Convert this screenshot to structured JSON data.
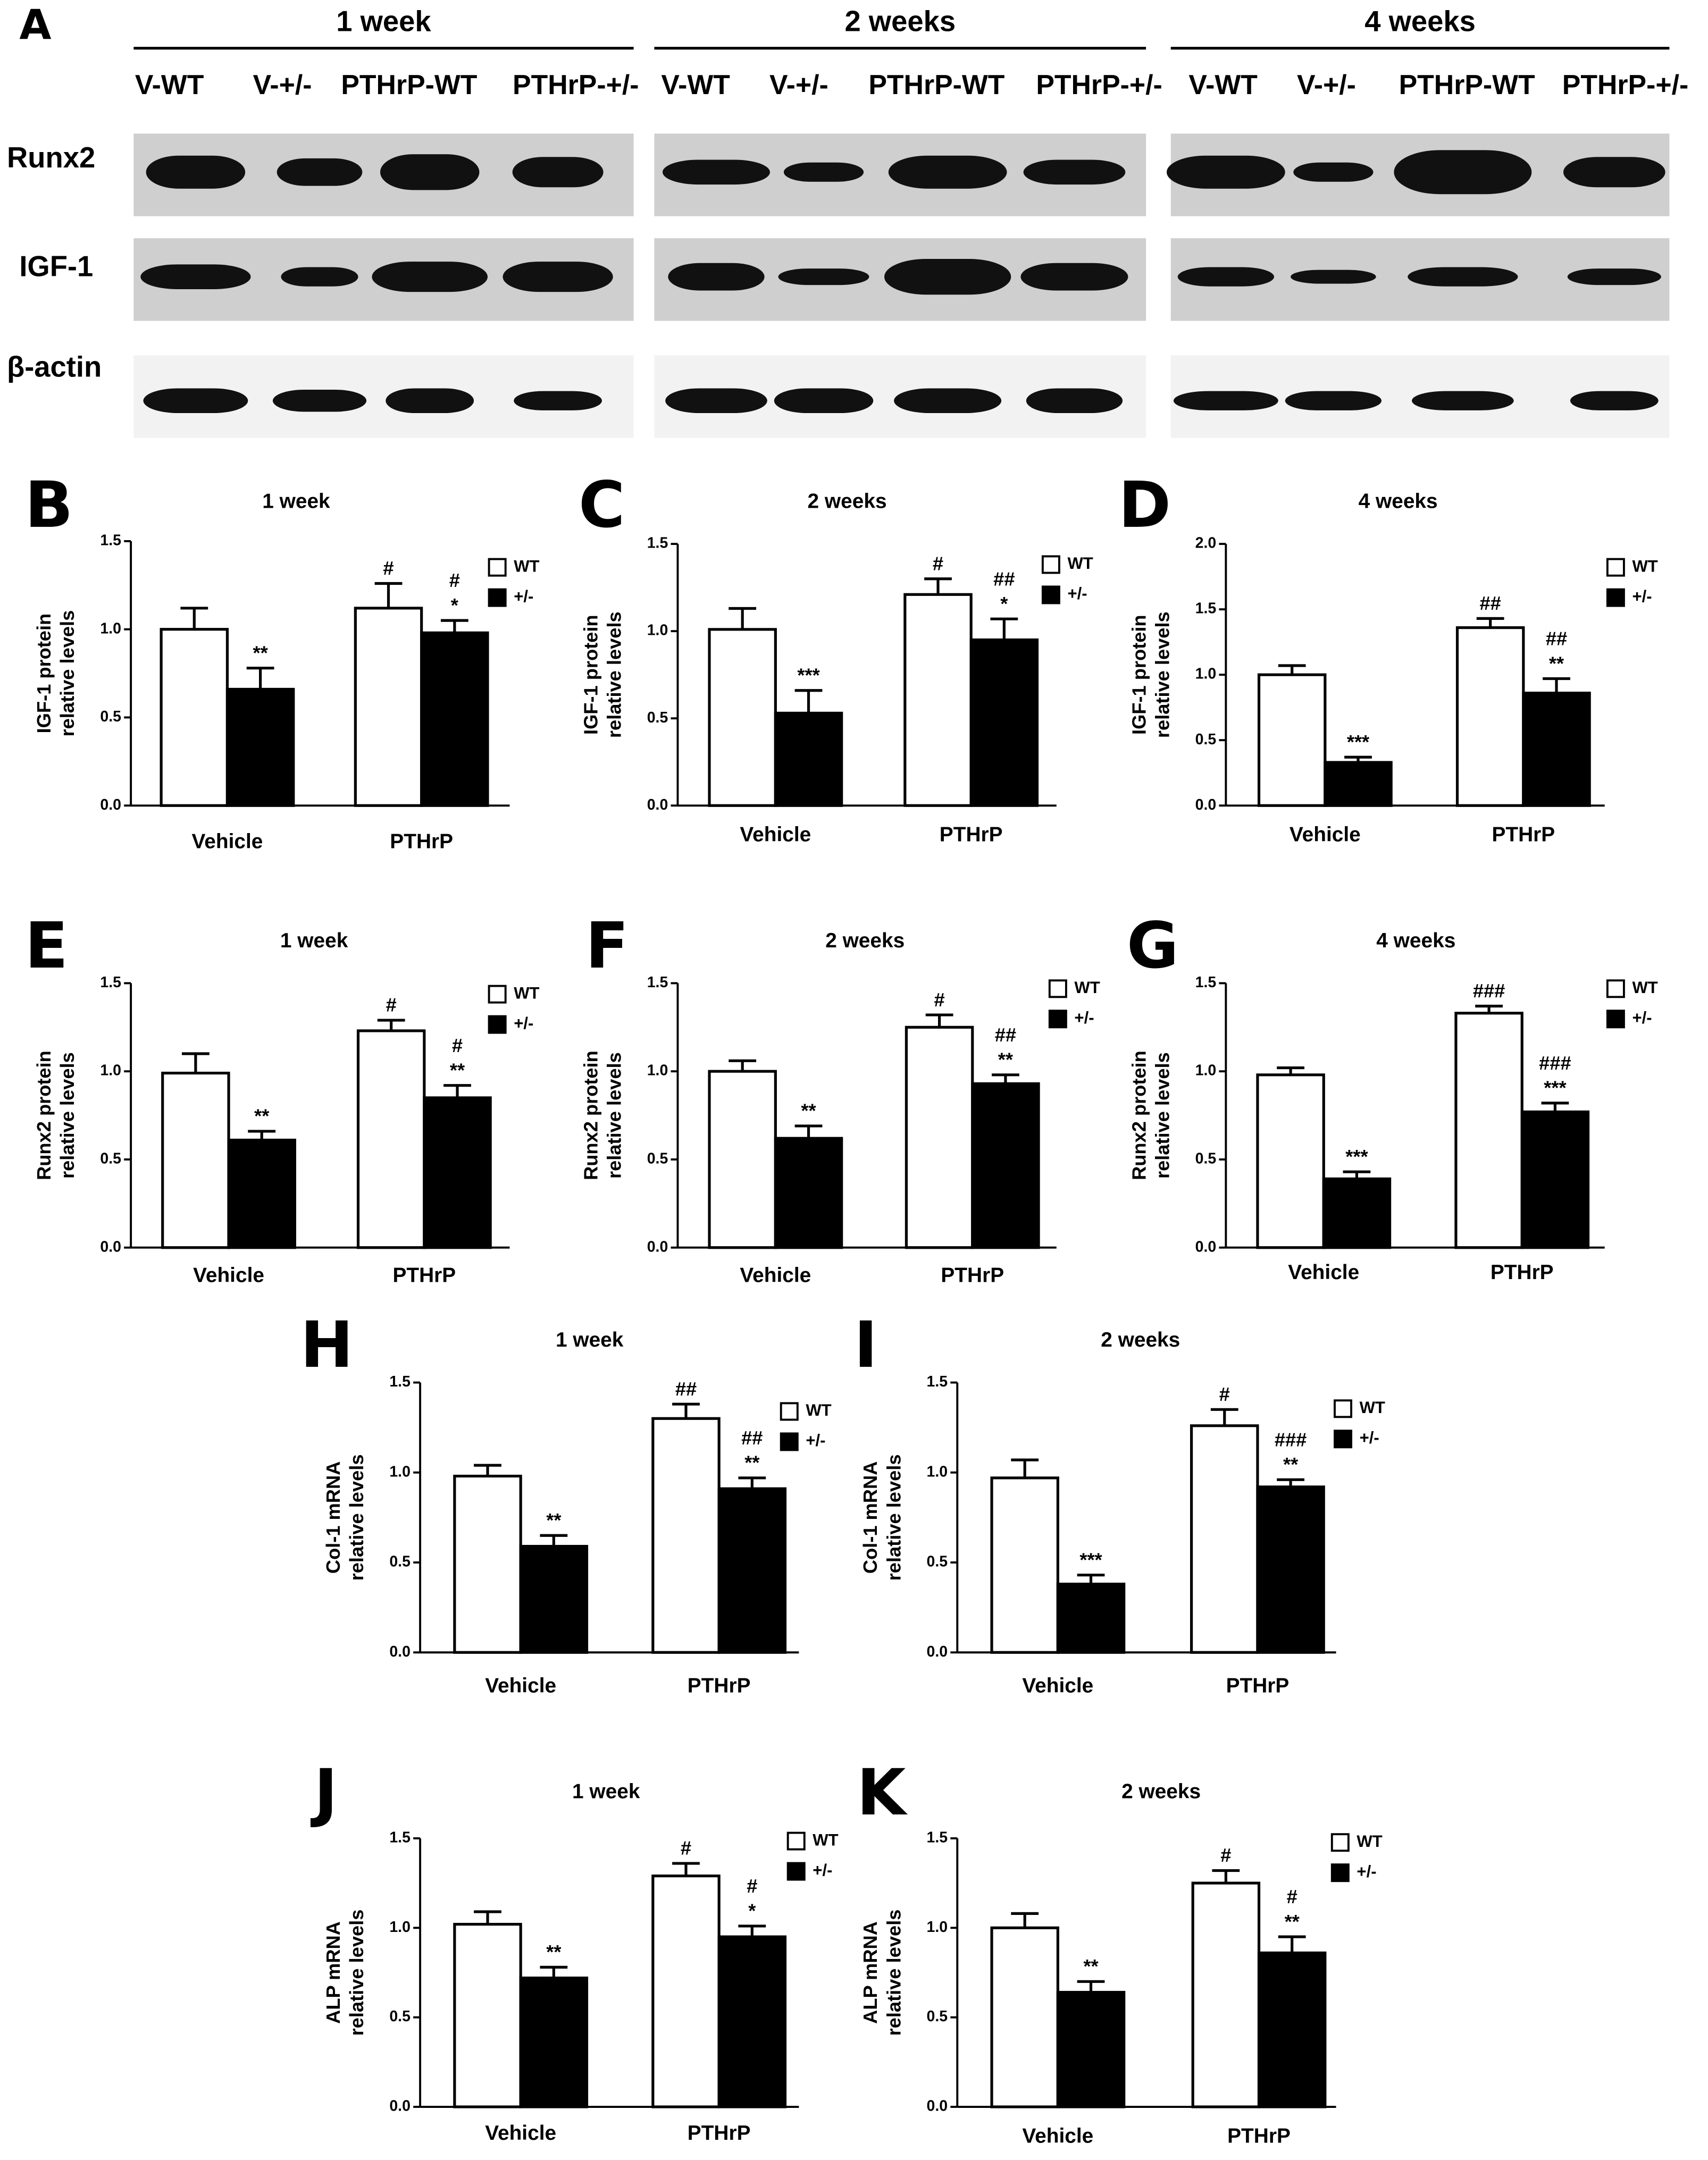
{
  "blot": {
    "letter": "A",
    "groups": [
      "1 week",
      "2 weeks",
      "4 weeks"
    ],
    "lanes": [
      "V-WT",
      "V-+/-",
      "PTHrP-WT",
      "PTHrP-+/-",
      "V-WT",
      "V-+/-",
      "PTHrP-WT",
      "PTHrP-+/-",
      "V-WT",
      "V-+/-",
      "PTHrP-WT",
      "PTHrP-+/-"
    ],
    "rows": [
      "Runx2",
      "IGF-1",
      "β-actin"
    ]
  },
  "chart_data": [
    {
      "type": "bar",
      "letter": "B",
      "title": "1 week",
      "ylabel": [
        "IGF-1 protein",
        "relative levels"
      ],
      "categories": [
        "Vehicle",
        "PTHrP"
      ],
      "ylim": [
        0,
        1.5
      ],
      "yticks": [
        {
          "value": 0,
          "label": "0.0"
        },
        {
          "value": 0.5,
          "label": "0.5"
        },
        {
          "value": 1,
          "label": "1.0"
        },
        {
          "value": 1.5,
          "label": "1.5"
        }
      ],
      "series": [
        {
          "name": "WT",
          "color": "#ffffff",
          "values": [
            1.0,
            1.12
          ],
          "errors": [
            0.12,
            0.14
          ],
          "annotations": [
            null,
            [
              "#"
            ]
          ]
        },
        {
          "name": "+/-",
          "color": "#000000",
          "values": [
            0.66,
            0.98
          ],
          "errors": [
            0.12,
            0.07
          ],
          "annotations": [
            [
              "**"
            ],
            [
              "#",
              "*"
            ]
          ]
        }
      ]
    },
    {
      "type": "bar",
      "letter": "C",
      "title": "2 weeks",
      "ylabel": [
        "IGF-1 protein",
        "relative levels"
      ],
      "categories": [
        "Vehicle",
        "PTHrP"
      ],
      "ylim": [
        0,
        1.5
      ],
      "yticks": [
        {
          "value": 0,
          "label": "0.0"
        },
        {
          "value": 0.5,
          "label": "0.5"
        },
        {
          "value": 1,
          "label": "1.0"
        },
        {
          "value": 1.5,
          "label": "1.5"
        }
      ],
      "series": [
        {
          "name": "WT",
          "color": "#ffffff",
          "values": [
            1.01,
            1.21
          ],
          "errors": [
            0.12,
            0.09
          ],
          "annotations": [
            null,
            [
              "#"
            ]
          ]
        },
        {
          "name": "+/-",
          "color": "#000000",
          "values": [
            0.53,
            0.95
          ],
          "errors": [
            0.13,
            0.12
          ],
          "annotations": [
            [
              "***"
            ],
            [
              "##",
              "*"
            ]
          ]
        }
      ]
    },
    {
      "type": "bar",
      "letter": "D",
      "title": "4 weeks",
      "ylabel": [
        "IGF-1 protein",
        "relative levels"
      ],
      "categories": [
        "Vehicle",
        "PTHrP"
      ],
      "ylim": [
        0,
        2
      ],
      "yticks": [
        {
          "value": 0,
          "label": "0.0"
        },
        {
          "value": 0.5,
          "label": "0.5"
        },
        {
          "value": 1,
          "label": "1.0"
        },
        {
          "value": 1.5,
          "label": "1.5"
        },
        {
          "value": 2,
          "label": "2.0"
        }
      ],
      "series": [
        {
          "name": "WT",
          "color": "#ffffff",
          "values": [
            1.0,
            1.36
          ],
          "errors": [
            0.07,
            0.07
          ],
          "annotations": [
            null,
            [
              "##"
            ]
          ]
        },
        {
          "name": "+/-",
          "color": "#000000",
          "values": [
            0.33,
            0.86
          ],
          "errors": [
            0.04,
            0.11
          ],
          "annotations": [
            [
              "***"
            ],
            [
              "##",
              "**"
            ]
          ]
        }
      ]
    },
    {
      "type": "bar",
      "letter": "E",
      "title": "1 week",
      "ylabel": [
        "Runx2 protein",
        "relative levels"
      ],
      "categories": [
        "Vehicle",
        "PTHrP"
      ],
      "ylim": [
        0,
        1.5
      ],
      "yticks": [
        {
          "value": 0,
          "label": "0.0"
        },
        {
          "value": 0.5,
          "label": "0.5"
        },
        {
          "value": 1,
          "label": "1.0"
        },
        {
          "value": 1.5,
          "label": "1.5"
        }
      ],
      "series": [
        {
          "name": "WT",
          "color": "#ffffff",
          "values": [
            0.99,
            1.23
          ],
          "errors": [
            0.11,
            0.06
          ],
          "annotations": [
            null,
            [
              "#"
            ]
          ]
        },
        {
          "name": "+/-",
          "color": "#000000",
          "values": [
            0.61,
            0.85
          ],
          "errors": [
            0.05,
            0.07
          ],
          "annotations": [
            [
              "**"
            ],
            [
              "#",
              "**"
            ]
          ]
        }
      ]
    },
    {
      "type": "bar",
      "letter": "F",
      "title": "2 weeks",
      "ylabel": [
        "Runx2 protein",
        "relative levels"
      ],
      "categories": [
        "Vehicle",
        "PTHrP"
      ],
      "ylim": [
        0,
        1.5
      ],
      "yticks": [
        {
          "value": 0,
          "label": "0.0"
        },
        {
          "value": 0.5,
          "label": "0.5"
        },
        {
          "value": 1,
          "label": "1.0"
        },
        {
          "value": 1.5,
          "label": "1.5"
        }
      ],
      "series": [
        {
          "name": "WT",
          "color": "#ffffff",
          "values": [
            1.0,
            1.25
          ],
          "errors": [
            0.06,
            0.07
          ],
          "annotations": [
            null,
            [
              "#"
            ]
          ]
        },
        {
          "name": "+/-",
          "color": "#000000",
          "values": [
            0.62,
            0.93
          ],
          "errors": [
            0.07,
            0.05
          ],
          "annotations": [
            [
              "**"
            ],
            [
              "##",
              "**"
            ]
          ]
        }
      ]
    },
    {
      "type": "bar",
      "letter": "G",
      "title": "4 weeks",
      "ylabel": [
        "Runx2 protein",
        "relative levels"
      ],
      "categories": [
        "Vehicle",
        "PTHrP"
      ],
      "ylim": [
        0,
        1.5
      ],
      "yticks": [
        {
          "value": 0,
          "label": "0.0"
        },
        {
          "value": 0.5,
          "label": "0.5"
        },
        {
          "value": 1,
          "label": "1.0"
        },
        {
          "value": 1.5,
          "label": "1.5"
        }
      ],
      "series": [
        {
          "name": "WT",
          "color": "#ffffff",
          "values": [
            0.98,
            1.33
          ],
          "errors": [
            0.04,
            0.04
          ],
          "annotations": [
            null,
            [
              "###"
            ]
          ]
        },
        {
          "name": "+/-",
          "color": "#000000",
          "values": [
            0.39,
            0.77
          ],
          "errors": [
            0.04,
            0.05
          ],
          "annotations": [
            [
              "***"
            ],
            [
              "###",
              "***"
            ]
          ]
        }
      ]
    },
    {
      "type": "bar",
      "letter": "H",
      "title": "1 week",
      "ylabel": [
        "Col-1 mRNA",
        "relative levels"
      ],
      "categories": [
        "Vehicle",
        "PTHrP"
      ],
      "ylim": [
        0,
        1.5
      ],
      "yticks": [
        {
          "value": 0,
          "label": "0.0"
        },
        {
          "value": 0.5,
          "label": "0.5"
        },
        {
          "value": 1,
          "label": "1.0"
        },
        {
          "value": 1.5,
          "label": "1.5"
        }
      ],
      "series": [
        {
          "name": "WT",
          "color": "#ffffff",
          "values": [
            0.98,
            1.3
          ],
          "errors": [
            0.06,
            0.08
          ],
          "annotations": [
            null,
            [
              "##"
            ]
          ]
        },
        {
          "name": "+/-",
          "color": "#000000",
          "values": [
            0.59,
            0.91
          ],
          "errors": [
            0.06,
            0.06
          ],
          "annotations": [
            [
              "**"
            ],
            [
              "##",
              "**"
            ]
          ]
        }
      ]
    },
    {
      "type": "bar",
      "letter": "I",
      "title": "2 weeks",
      "ylabel": [
        "Col-1 mRNA",
        "relative levels"
      ],
      "categories": [
        "Vehicle",
        "PTHrP"
      ],
      "ylim": [
        0,
        1.5
      ],
      "yticks": [
        {
          "value": 0,
          "label": "0.0"
        },
        {
          "value": 0.5,
          "label": "0.5"
        },
        {
          "value": 1,
          "label": "1.0"
        },
        {
          "value": 1.5,
          "label": "1.5"
        }
      ],
      "series": [
        {
          "name": "WT",
          "color": "#ffffff",
          "values": [
            0.97,
            1.26
          ],
          "errors": [
            0.1,
            0.09
          ],
          "annotations": [
            null,
            [
              "#"
            ]
          ]
        },
        {
          "name": "+/-",
          "color": "#000000",
          "values": [
            0.38,
            0.92
          ],
          "errors": [
            0.05,
            0.04
          ],
          "annotations": [
            [
              "***"
            ],
            [
              "###",
              "**"
            ]
          ]
        }
      ]
    },
    {
      "type": "bar",
      "letter": "J",
      "title": "1 week",
      "ylabel": [
        "ALP mRNA",
        "relative levels"
      ],
      "categories": [
        "Vehicle",
        "PTHrP"
      ],
      "ylim": [
        0,
        1.5
      ],
      "yticks": [
        {
          "value": 0,
          "label": "0.0"
        },
        {
          "value": 0.5,
          "label": "0.5"
        },
        {
          "value": 1,
          "label": "1.0"
        },
        {
          "value": 1.5,
          "label": "1.5"
        }
      ],
      "series": [
        {
          "name": "WT",
          "color": "#ffffff",
          "values": [
            1.02,
            1.29
          ],
          "errors": [
            0.07,
            0.07
          ],
          "annotations": [
            null,
            [
              "#"
            ]
          ]
        },
        {
          "name": "+/-",
          "color": "#000000",
          "values": [
            0.72,
            0.95
          ],
          "errors": [
            0.06,
            0.06
          ],
          "annotations": [
            [
              "**"
            ],
            [
              "#",
              "*"
            ]
          ]
        }
      ]
    },
    {
      "type": "bar",
      "letter": "K",
      "title": "2 weeks",
      "ylabel": [
        "ALP mRNA",
        "relative levels"
      ],
      "categories": [
        "Vehicle",
        "PTHrP"
      ],
      "ylim": [
        0,
        1.5
      ],
      "yticks": [
        {
          "value": 0,
          "label": "0.0"
        },
        {
          "value": 0.5,
          "label": "0.5"
        },
        {
          "value": 1,
          "label": "1.0"
        },
        {
          "value": 1.5,
          "label": "1.5"
        }
      ],
      "series": [
        {
          "name": "WT",
          "color": "#ffffff",
          "values": [
            1.0,
            1.25
          ],
          "errors": [
            0.08,
            0.07
          ],
          "annotations": [
            null,
            [
              "#"
            ]
          ]
        },
        {
          "name": "+/-",
          "color": "#000000",
          "values": [
            0.64,
            0.86
          ],
          "errors": [
            0.06,
            0.09
          ],
          "annotations": [
            [
              "**"
            ],
            [
              "#",
              "**"
            ]
          ]
        }
      ]
    }
  ]
}
